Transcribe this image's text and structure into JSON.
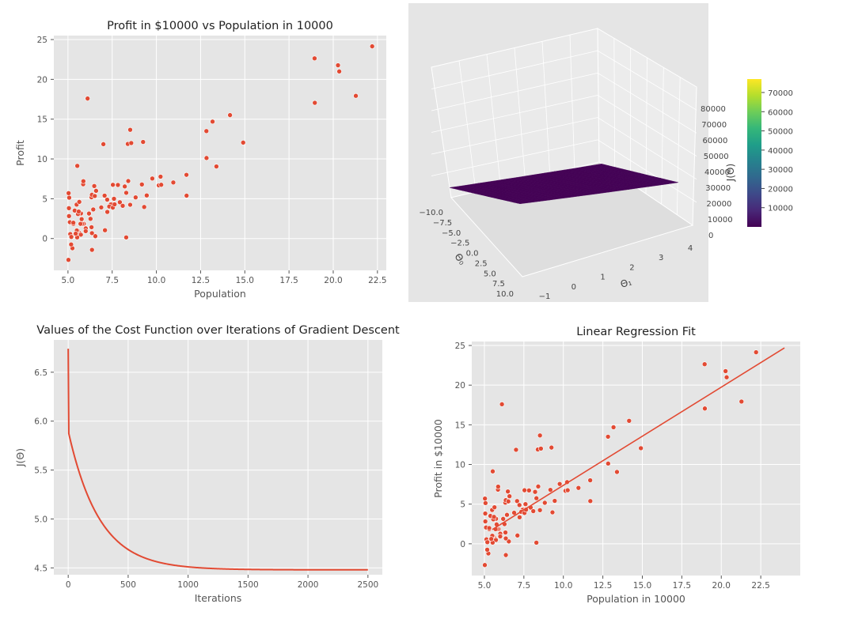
{
  "chart_data": [
    {
      "type": "scatter",
      "title": "Profit in $10000 vs Population in 10000",
      "xlabel": "Population",
      "ylabel": "Profit",
      "xlim": [
        4.2,
        23.0
      ],
      "ylim": [
        -4.0,
        25.5
      ],
      "xticks": [
        "5.0",
        "7.5",
        "10.0",
        "12.5",
        "15.0",
        "17.5",
        "20.0",
        "22.5"
      ],
      "yticks": [
        "0",
        "5",
        "10",
        "15",
        "20",
        "25"
      ],
      "grid": true,
      "point_color": "#e24a33",
      "points": [
        [
          6.1101,
          17.592
        ],
        [
          5.5277,
          9.1302
        ],
        [
          8.5186,
          13.662
        ],
        [
          7.0032,
          11.854
        ],
        [
          5.8598,
          6.8233
        ],
        [
          8.3829,
          11.886
        ],
        [
          7.4764,
          4.3483
        ],
        [
          8.5781,
          12.0
        ],
        [
          6.4862,
          6.5987
        ],
        [
          5.0546,
          3.8166
        ],
        [
          5.7107,
          3.2522
        ],
        [
          14.164,
          15.505
        ],
        [
          5.734,
          3.1551
        ],
        [
          8.4084,
          7.2258
        ],
        [
          5.6407,
          0.71618
        ],
        [
          5.3794,
          3.5129
        ],
        [
          6.3654,
          5.3048
        ],
        [
          5.1301,
          0.56077
        ],
        [
          6.4296,
          3.6518
        ],
        [
          7.0708,
          5.3893
        ],
        [
          6.1891,
          3.1386
        ],
        [
          20.27,
          21.767
        ],
        [
          5.4901,
          4.263
        ],
        [
          6.3261,
          5.1875
        ],
        [
          5.5649,
          3.0825
        ],
        [
          18.945,
          22.638
        ],
        [
          12.828,
          13.501
        ],
        [
          10.957,
          7.0467
        ],
        [
          13.176,
          14.692
        ],
        [
          22.203,
          24.147
        ],
        [
          5.2524,
          -1.22
        ],
        [
          6.5894,
          5.9966
        ],
        [
          9.2482,
          12.134
        ],
        [
          5.8918,
          1.8495
        ],
        [
          8.2111,
          6.5426
        ],
        [
          7.9334,
          4.5623
        ],
        [
          8.0959,
          4.1164
        ],
        [
          5.6063,
          3.3928
        ],
        [
          12.836,
          10.117
        ],
        [
          6.3534,
          5.4974
        ],
        [
          5.4069,
          0.55657
        ],
        [
          6.8825,
          3.9115
        ],
        [
          11.708,
          5.3854
        ],
        [
          5.7737,
          2.4406
        ],
        [
          7.8247,
          6.7318
        ],
        [
          7.0931,
          1.0463
        ],
        [
          5.0702,
          5.1337
        ],
        [
          5.8014,
          1.844
        ],
        [
          11.7,
          8.0043
        ],
        [
          5.5416,
          1.0179
        ],
        [
          7.5402,
          6.7504
        ],
        [
          5.3077,
          1.8396
        ],
        [
          7.4239,
          4.2885
        ],
        [
          7.6031,
          4.9981
        ],
        [
          6.3328,
          1.4233
        ],
        [
          6.3589,
          -1.4211
        ],
        [
          6.2742,
          2.4756
        ],
        [
          5.6397,
          4.6042
        ],
        [
          9.3102,
          3.9624
        ],
        [
          9.4536,
          5.4141
        ],
        [
          8.8254,
          5.1694
        ],
        [
          5.1793,
          -0.74279
        ],
        [
          21.279,
          17.929
        ],
        [
          14.908,
          12.054
        ],
        [
          18.959,
          17.054
        ],
        [
          7.2182,
          4.8852
        ],
        [
          8.2951,
          5.7442
        ],
        [
          10.236,
          7.7754
        ],
        [
          5.4994,
          1.0173
        ],
        [
          20.341,
          20.992
        ],
        [
          10.136,
          6.6799
        ],
        [
          7.3345,
          4.0259
        ],
        [
          6.0062,
          1.2784
        ],
        [
          7.2259,
          3.3411
        ],
        [
          5.0269,
          -2.6807
        ],
        [
          6.5479,
          0.29678
        ],
        [
          7.5386,
          3.8845
        ],
        [
          5.0365,
          5.7014
        ],
        [
          10.274,
          6.7526
        ],
        [
          5.1077,
          2.0576
        ],
        [
          5.7292,
          0.47953
        ],
        [
          5.1884,
          0.20421
        ],
        [
          6.3557,
          0.67861
        ],
        [
          9.7687,
          7.5435
        ],
        [
          6.5159,
          5.3436
        ],
        [
          8.5172,
          4.2415
        ],
        [
          9.1802,
          6.7981
        ],
        [
          6.002,
          0.92695
        ],
        [
          5.5204,
          0.152
        ],
        [
          5.0594,
          2.8214
        ],
        [
          5.7077,
          1.8451
        ],
        [
          7.6366,
          4.2959
        ],
        [
          5.8707,
          7.2029
        ],
        [
          5.3054,
          1.9869
        ],
        [
          8.2934,
          0.14454
        ],
        [
          13.394,
          9.0551
        ],
        [
          5.4369,
          0.61705
        ]
      ]
    },
    {
      "type": "surface",
      "xlabel": "Θ₀",
      "ylabel": "Θ₁",
      "zlabel": "J(Θ)",
      "x_ticks": [
        "−10.0",
        "−7.5",
        "−5.0",
        "−2.5",
        "0.0",
        "2.5",
        "5.0",
        "7.5",
        "10.0"
      ],
      "y_ticks": [
        "−1",
        "0",
        "1",
        "2",
        "3",
        "4"
      ],
      "z_ticks": [
        "0",
        "10000",
        "20000",
        "30000",
        "40000",
        "50000",
        "60000",
        "70000",
        "80000"
      ],
      "colorbar_ticks": [
        "10000",
        "20000",
        "30000",
        "40000",
        "50000",
        "60000",
        "70000"
      ],
      "colormap": "viridis",
      "theta0_range": [
        -10,
        10
      ],
      "theta1_range": [
        -1,
        4
      ]
    },
    {
      "type": "line",
      "title": "Values of the Cost Function over Iterations of Gradient Descent",
      "xlabel": "Iterations",
      "ylabel": "J(Θ)",
      "xlim": [
        -120,
        2620
      ],
      "ylim": [
        4.43,
        6.83
      ],
      "xticks": [
        "0",
        "500",
        "1000",
        "1500",
        "2000",
        "2500"
      ],
      "yticks": [
        "4.5",
        "5.0",
        "5.5",
        "6.0",
        "6.5"
      ],
      "line_color": "#e24a33",
      "iterations": 2500,
      "start_value": 6.74,
      "value_after_first_steps": 5.9,
      "final_value": 4.48
    },
    {
      "type": "scatter",
      "title": "Linear Regression Fit",
      "xlabel": "Population in 10000",
      "ylabel": "Profit in $10000",
      "xlim": [
        4.2,
        25.0
      ],
      "ylim": [
        -4.0,
        25.5
      ],
      "xticks": [
        "5.0",
        "7.5",
        "10.0",
        "12.5",
        "15.0",
        "17.5",
        "20.0",
        "22.5"
      ],
      "yticks": [
        "0",
        "5",
        "10",
        "15",
        "20",
        "25"
      ],
      "grid": true,
      "point_color": "#e24a33",
      "fit_line": {
        "x": [
          5.5,
          24.0
        ],
        "y": [
          1.8,
          24.7
        ]
      }
    }
  ]
}
